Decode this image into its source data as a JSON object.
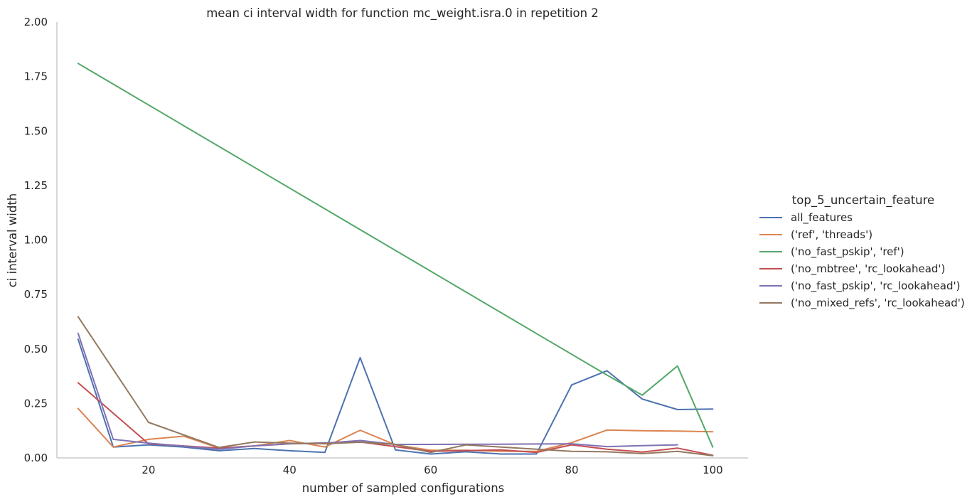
{
  "chart_data": {
    "type": "line",
    "title": "mean ci interval width for function mc_weight.isra.0 in repetition 2",
    "xlabel": "number of sampled configurations",
    "ylabel": "ci interval width",
    "xlim": [
      7,
      105
    ],
    "ylim": [
      0,
      2.0
    ],
    "x_ticks": [
      20,
      40,
      60,
      80,
      100
    ],
    "y_ticks": [
      0.0,
      0.25,
      0.5,
      0.75,
      1.0,
      1.25,
      1.5,
      1.75,
      2.0
    ],
    "x_tick_labels": [
      "20",
      "40",
      "60",
      "80",
      "100"
    ],
    "y_tick_labels": [
      "0.00",
      "0.25",
      "0.50",
      "0.75",
      "1.00",
      "1.25",
      "1.50",
      "1.75",
      "2.00"
    ],
    "grid": false,
    "legend_title": "top_5_uncertain_feature",
    "legend_position": "right",
    "series": [
      {
        "name": "all_features",
        "color": "#4c72b0",
        "points": [
          [
            10,
            0.545
          ],
          [
            15,
            0.05
          ],
          [
            20,
            0.06
          ],
          [
            25,
            0.05
          ],
          [
            30,
            0.033
          ],
          [
            35,
            0.043
          ],
          [
            40,
            0.033
          ],
          [
            45,
            0.025
          ],
          [
            50,
            0.46
          ],
          [
            55,
            0.037
          ],
          [
            60,
            0.018
          ],
          [
            65,
            0.028
          ],
          [
            70,
            0.018
          ],
          [
            75,
            0.018
          ],
          [
            80,
            0.335
          ],
          [
            85,
            0.4
          ],
          [
            90,
            0.27
          ],
          [
            95,
            0.222
          ],
          [
            100,
            0.224
          ]
        ]
      },
      {
        "name": "('ref', 'threads')",
        "color": "#dd8452",
        "points": [
          [
            10,
            0.227
          ],
          [
            15,
            0.05
          ],
          [
            20,
            0.085
          ],
          [
            25,
            0.1
          ],
          [
            30,
            0.045
          ],
          [
            35,
            0.055
          ],
          [
            40,
            0.08
          ],
          [
            45,
            0.05
          ],
          [
            50,
            0.127
          ],
          [
            55,
            0.06
          ],
          [
            60,
            0.035
          ],
          [
            65,
            0.035
          ],
          [
            70,
            0.03
          ],
          [
            75,
            0.03
          ],
          [
            80,
            0.07
          ],
          [
            85,
            0.128
          ],
          [
            90,
            0.125
          ],
          [
            95,
            0.123
          ],
          [
            100,
            0.12
          ]
        ]
      },
      {
        "name": "('no_fast_pskip', 'ref')",
        "color": "#55a868",
        "points": [
          [
            10,
            1.81
          ],
          [
            85,
            0.38
          ],
          [
            90,
            0.288
          ],
          [
            95,
            0.422
          ],
          [
            100,
            0.05
          ]
        ]
      },
      {
        "name": "('no_mbtree', 'rc_lookahead')",
        "color": "#c44e52",
        "points": [
          [
            10,
            0.345
          ],
          [
            20,
            0.065
          ],
          [
            30,
            0.045
          ],
          [
            40,
            0.065
          ],
          [
            50,
            0.073
          ],
          [
            60,
            0.03
          ],
          [
            70,
            0.037
          ],
          [
            75,
            0.025
          ],
          [
            80,
            0.06
          ],
          [
            85,
            0.04
          ],
          [
            90,
            0.027
          ],
          [
            95,
            0.045
          ],
          [
            100,
            0.012
          ]
        ]
      },
      {
        "name": "('no_fast_pskip', 'rc_lookahead')",
        "color": "#8172b2",
        "points": [
          [
            10,
            0.572
          ],
          [
            15,
            0.085
          ],
          [
            20,
            0.068
          ],
          [
            30,
            0.04
          ],
          [
            35,
            0.055
          ],
          [
            40,
            0.065
          ],
          [
            45,
            0.068
          ],
          [
            50,
            0.08
          ],
          [
            55,
            0.062
          ],
          [
            60,
            0.062
          ],
          [
            65,
            0.063
          ],
          [
            70,
            0.063
          ],
          [
            75,
            0.064
          ],
          [
            80,
            0.065
          ],
          [
            85,
            0.052
          ],
          [
            90,
            0.056
          ],
          [
            95,
            0.06
          ]
        ]
      },
      {
        "name": "('no_mixed_refs', 'rc_lookahead')",
        "color": "#937860",
        "points": [
          [
            10,
            0.648
          ],
          [
            20,
            0.163
          ],
          [
            30,
            0.048
          ],
          [
            35,
            0.073
          ],
          [
            40,
            0.068
          ],
          [
            45,
            0.065
          ],
          [
            50,
            0.072
          ],
          [
            55,
            0.062
          ],
          [
            60,
            0.025
          ],
          [
            65,
            0.06
          ],
          [
            70,
            0.05
          ],
          [
            75,
            0.04
          ],
          [
            80,
            0.03
          ],
          [
            85,
            0.028
          ],
          [
            90,
            0.02
          ],
          [
            95,
            0.03
          ],
          [
            100,
            0.01
          ]
        ]
      }
    ]
  }
}
